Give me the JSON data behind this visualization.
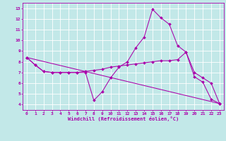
{
  "xlabel": "Windchill (Refroidissement éolien,°C)",
  "xlim": [
    -0.5,
    23.5
  ],
  "ylim": [
    3.5,
    13.5
  ],
  "xticks": [
    0,
    1,
    2,
    3,
    4,
    5,
    6,
    7,
    8,
    9,
    10,
    11,
    12,
    13,
    14,
    15,
    16,
    17,
    18,
    19,
    20,
    21,
    22,
    23
  ],
  "yticks": [
    4,
    5,
    6,
    7,
    8,
    9,
    10,
    11,
    12,
    13
  ],
  "bg_color": "#c2e8e8",
  "line_color": "#aa00aa",
  "grid_color": "#ffffff",
  "line1_x": [
    0,
    1,
    2,
    3,
    4,
    5,
    6,
    7,
    8,
    9,
    10,
    11,
    12,
    13,
    14,
    15,
    16,
    17,
    18,
    19,
    20,
    21,
    22,
    23
  ],
  "line1_y": [
    8.4,
    7.7,
    7.1,
    7.0,
    7.0,
    7.0,
    7.0,
    7.0,
    4.4,
    5.2,
    6.5,
    7.5,
    8.0,
    9.3,
    10.3,
    12.9,
    12.1,
    11.5,
    9.5,
    8.9,
    6.6,
    6.1,
    4.5,
    4.1
  ],
  "line2_x": [
    0,
    1,
    2,
    3,
    4,
    5,
    6,
    7,
    8,
    9,
    10,
    11,
    12,
    13,
    14,
    15,
    16,
    17,
    18,
    19,
    20,
    21,
    22,
    23
  ],
  "line2_y": [
    8.4,
    7.7,
    7.1,
    7.0,
    7.0,
    7.0,
    7.0,
    7.1,
    7.2,
    7.3,
    7.5,
    7.6,
    7.7,
    7.8,
    7.9,
    8.0,
    8.1,
    8.1,
    8.2,
    8.9,
    7.0,
    6.5,
    6.0,
    4.1
  ],
  "line3_x": [
    0,
    23
  ],
  "line3_y": [
    8.4,
    4.1
  ],
  "tick_fontsize": 4.5,
  "xlabel_fontsize": 5.0,
  "marker_size": 2.0,
  "linewidth": 0.75
}
